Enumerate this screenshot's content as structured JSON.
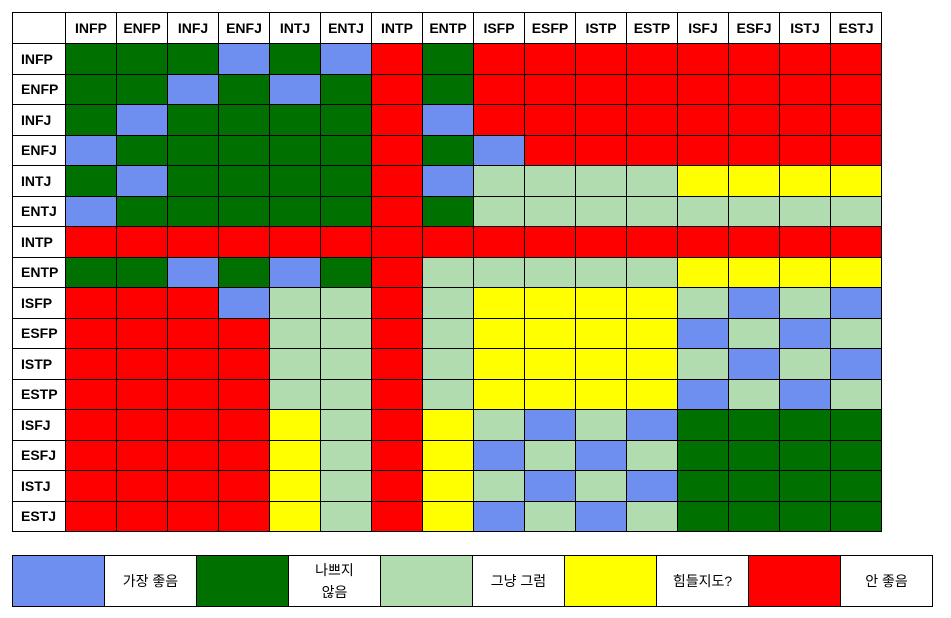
{
  "colors": {
    "B": "#6f8ff0",
    "G": "#007000",
    "L": "#b0dcb0",
    "Y": "#ffff00",
    "R": "#ff0000"
  },
  "types": [
    "INFP",
    "ENFP",
    "INFJ",
    "ENFJ",
    "INTJ",
    "ENTJ",
    "INTP",
    "ENTP",
    "ISFP",
    "ESFP",
    "ISTP",
    "ESTP",
    "ISFJ",
    "ESFJ",
    "ISTJ",
    "ESTJ"
  ],
  "matrix": [
    [
      "G",
      "G",
      "G",
      "B",
      "G",
      "B",
      "R",
      "G",
      "R",
      "R",
      "R",
      "R",
      "R",
      "R",
      "R",
      "R"
    ],
    [
      "G",
      "G",
      "B",
      "G",
      "B",
      "G",
      "R",
      "G",
      "R",
      "R",
      "R",
      "R",
      "R",
      "R",
      "R",
      "R"
    ],
    [
      "G",
      "B",
      "G",
      "G",
      "G",
      "G",
      "R",
      "B",
      "R",
      "R",
      "R",
      "R",
      "R",
      "R",
      "R",
      "R"
    ],
    [
      "B",
      "G",
      "G",
      "G",
      "G",
      "G",
      "R",
      "G",
      "B",
      "R",
      "R",
      "R",
      "R",
      "R",
      "R",
      "R"
    ],
    [
      "G",
      "B",
      "G",
      "G",
      "G",
      "G",
      "R",
      "B",
      "L",
      "L",
      "L",
      "L",
      "Y",
      "Y",
      "Y",
      "Y"
    ],
    [
      "B",
      "G",
      "G",
      "G",
      "G",
      "G",
      "R",
      "G",
      "L",
      "L",
      "L",
      "L",
      "L",
      "L",
      "L",
      "L"
    ],
    [
      "R",
      "R",
      "R",
      "R",
      "R",
      "R",
      "R",
      "R",
      "R",
      "R",
      "R",
      "R",
      "R",
      "R",
      "R",
      "R"
    ],
    [
      "G",
      "G",
      "B",
      "G",
      "B",
      "G",
      "R",
      "L",
      "L",
      "L",
      "L",
      "L",
      "Y",
      "Y",
      "Y",
      "Y"
    ],
    [
      "R",
      "R",
      "R",
      "B",
      "L",
      "L",
      "R",
      "L",
      "Y",
      "Y",
      "Y",
      "Y",
      "L",
      "B",
      "L",
      "B"
    ],
    [
      "R",
      "R",
      "R",
      "R",
      "L",
      "L",
      "R",
      "L",
      "Y",
      "Y",
      "Y",
      "Y",
      "B",
      "L",
      "B",
      "L"
    ],
    [
      "R",
      "R",
      "R",
      "R",
      "L",
      "L",
      "R",
      "L",
      "Y",
      "Y",
      "Y",
      "Y",
      "L",
      "B",
      "L",
      "B"
    ],
    [
      "R",
      "R",
      "R",
      "R",
      "L",
      "L",
      "R",
      "L",
      "Y",
      "Y",
      "Y",
      "Y",
      "B",
      "L",
      "B",
      "L"
    ],
    [
      "R",
      "R",
      "R",
      "R",
      "Y",
      "L",
      "R",
      "Y",
      "L",
      "B",
      "L",
      "B",
      "G",
      "G",
      "G",
      "G"
    ],
    [
      "R",
      "R",
      "R",
      "R",
      "Y",
      "L",
      "R",
      "Y",
      "B",
      "L",
      "B",
      "L",
      "G",
      "G",
      "G",
      "G"
    ],
    [
      "R",
      "R",
      "R",
      "R",
      "Y",
      "L",
      "R",
      "Y",
      "L",
      "B",
      "L",
      "B",
      "G",
      "G",
      "G",
      "G"
    ],
    [
      "R",
      "R",
      "R",
      "R",
      "Y",
      "L",
      "R",
      "Y",
      "B",
      "L",
      "B",
      "L",
      "G",
      "G",
      "G",
      "G"
    ]
  ],
  "legend": [
    {
      "code": "B",
      "label": "가장 좋음"
    },
    {
      "code": "G",
      "label": "나쁘지\n않음"
    },
    {
      "code": "L",
      "label": "그냥 그럼"
    },
    {
      "code": "Y",
      "label": "힘들지도?"
    },
    {
      "code": "R",
      "label": "안 좋음"
    }
  ]
}
